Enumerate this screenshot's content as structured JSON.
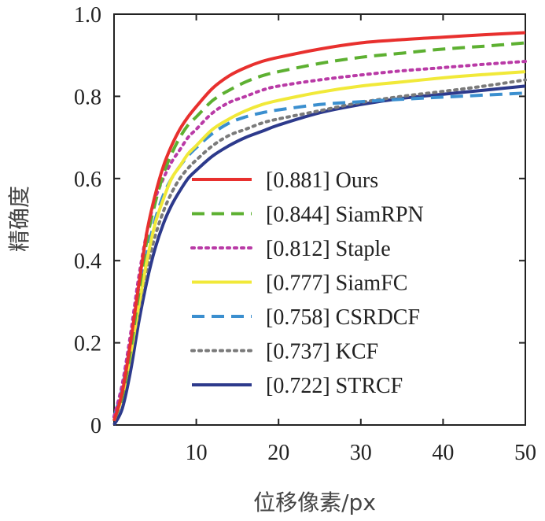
{
  "chart_data": {
    "type": "line",
    "title": "",
    "xlabel": "位移像素/px",
    "ylabel": "精确度",
    "xlim": [
      0,
      50
    ],
    "ylim": [
      0,
      1.0
    ],
    "x_ticks": [
      10,
      20,
      30,
      40,
      50
    ],
    "x_tick_labels": [
      "10",
      "20",
      "30",
      "40",
      "50"
    ],
    "y_ticks": [
      0,
      0.2,
      0.4,
      0.6,
      0.8,
      1.0
    ],
    "y_tick_labels": [
      "0",
      "0.2",
      "0.4",
      "0.6",
      "0.8",
      "1.0"
    ],
    "grid": false,
    "legend_position": "center",
    "x": [
      0,
      1,
      2,
      3,
      4,
      5,
      6,
      7,
      8,
      9,
      10,
      12,
      14,
      16,
      18,
      20,
      25,
      30,
      35,
      40,
      45,
      50
    ],
    "series": [
      {
        "name": "[0.881] Ours",
        "color": "#e8302e",
        "dash": "solid",
        "values": [
          0.01,
          0.08,
          0.2,
          0.34,
          0.47,
          0.56,
          0.63,
          0.68,
          0.72,
          0.75,
          0.775,
          0.82,
          0.85,
          0.87,
          0.885,
          0.895,
          0.915,
          0.93,
          0.938,
          0.944,
          0.95,
          0.955
        ]
      },
      {
        "name": "[0.844] SiamRPN",
        "color": "#5db031",
        "dash": "dashed",
        "values": [
          0.01,
          0.07,
          0.18,
          0.32,
          0.45,
          0.54,
          0.61,
          0.66,
          0.7,
          0.73,
          0.75,
          0.79,
          0.815,
          0.835,
          0.85,
          0.86,
          0.88,
          0.895,
          0.905,
          0.915,
          0.922,
          0.93
        ]
      },
      {
        "name": "[0.812] Staple",
        "color": "#b93aa6",
        "dash": "dotted",
        "values": [
          0.02,
          0.1,
          0.22,
          0.36,
          0.47,
          0.55,
          0.6,
          0.64,
          0.67,
          0.7,
          0.72,
          0.76,
          0.785,
          0.8,
          0.815,
          0.825,
          0.84,
          0.852,
          0.862,
          0.87,
          0.878,
          0.885
        ]
      },
      {
        "name": "[0.777] SiamFC",
        "color": "#f1e939",
        "dash": "solid",
        "values": [
          0.01,
          0.07,
          0.17,
          0.29,
          0.4,
          0.49,
          0.55,
          0.6,
          0.63,
          0.66,
          0.68,
          0.72,
          0.745,
          0.765,
          0.78,
          0.79,
          0.81,
          0.825,
          0.835,
          0.845,
          0.853,
          0.86
        ]
      },
      {
        "name": "[0.758] CSRDCF",
        "color": "#3b8fcf",
        "dash": "dashed",
        "values": [
          0.02,
          0.09,
          0.2,
          0.32,
          0.42,
          0.5,
          0.56,
          0.6,
          0.63,
          0.655,
          0.675,
          0.71,
          0.735,
          0.75,
          0.76,
          0.767,
          0.78,
          0.787,
          0.793,
          0.798,
          0.803,
          0.808
        ]
      },
      {
        "name": "[0.737] KCF",
        "color": "#7a7a7a",
        "dash": "dotted",
        "values": [
          0.02,
          0.08,
          0.17,
          0.28,
          0.38,
          0.46,
          0.52,
          0.565,
          0.6,
          0.625,
          0.645,
          0.68,
          0.705,
          0.72,
          0.735,
          0.745,
          0.765,
          0.785,
          0.8,
          0.812,
          0.825,
          0.84
        ]
      },
      {
        "name": "[0.722] STRCF",
        "color": "#2d3a8c",
        "dash": "solid",
        "values": [
          0.0,
          0.04,
          0.13,
          0.25,
          0.35,
          0.43,
          0.49,
          0.535,
          0.57,
          0.6,
          0.62,
          0.655,
          0.68,
          0.7,
          0.715,
          0.73,
          0.76,
          0.78,
          0.795,
          0.805,
          0.815,
          0.825
        ]
      }
    ]
  }
}
